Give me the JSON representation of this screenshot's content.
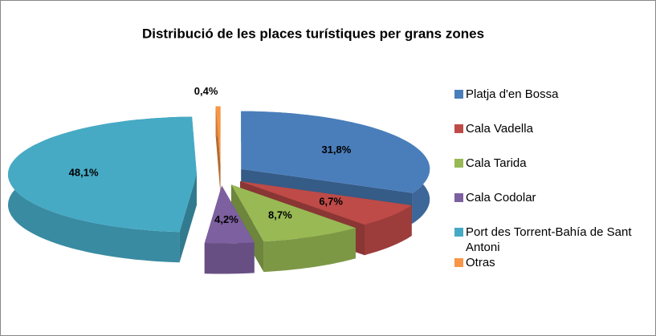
{
  "chart_data": {
    "type": "pie3d",
    "title": "Distribució de les places turístiques per grans zones",
    "categories": [
      "Platja d'en Bossa",
      "Cala Vadella",
      "Cala Tarida",
      "Cala Codolar",
      "Port des Torrent-Bahía de Sant Antoni",
      "Otras"
    ],
    "values": [
      31.8,
      6.7,
      8.7,
      4.2,
      48.1,
      0.4
    ],
    "value_labels": [
      "31,8%",
      "6,7%",
      "8,7%",
      "4,2%",
      "48,1%",
      "0,4%"
    ],
    "colors": [
      "#4a7ebb",
      "#be4b48",
      "#98b954",
      "#7d60a0",
      "#46aac5",
      "#f79646"
    ],
    "legend": "right"
  }
}
